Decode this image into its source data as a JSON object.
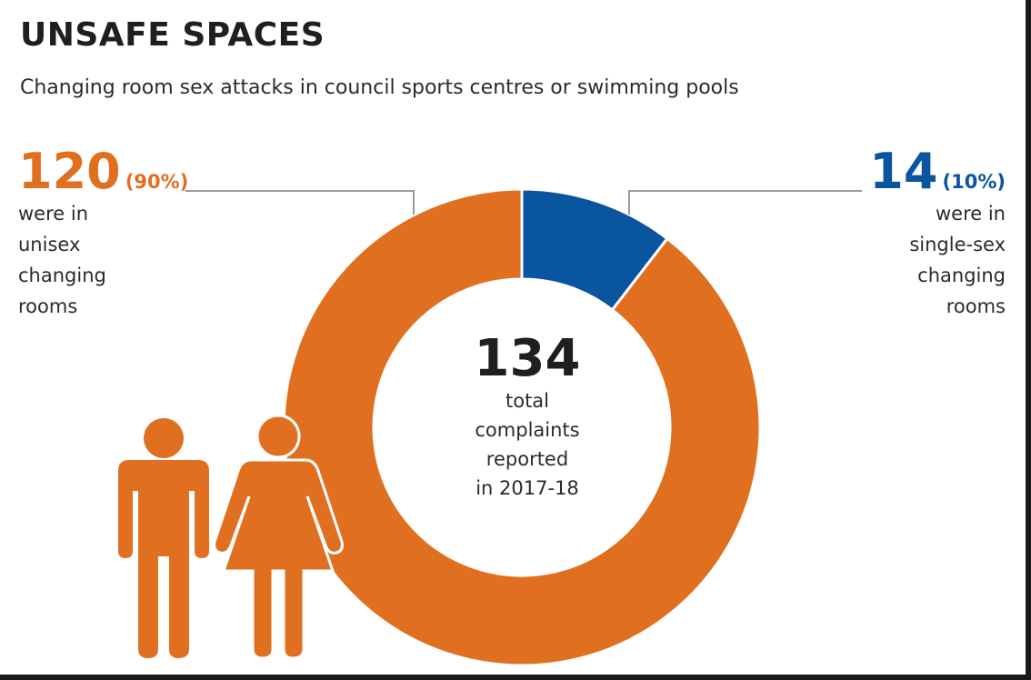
{
  "title": "UNSAFE SPACES",
  "subtitle": "Changing room sex attacks in council sports centres or swimming pools",
  "center": {
    "total": "134",
    "desc_lines": [
      "total",
      "complaints",
      "reported",
      "in 2017-18"
    ]
  },
  "left_label": {
    "value": "120",
    "pct": "(90%)",
    "desc_lines": [
      "were in",
      "unisex",
      "changing",
      "rooms"
    ]
  },
  "right_label": {
    "value": "14",
    "pct": "(10%)",
    "desc_lines": [
      "were in",
      "single-sex",
      "changing",
      "rooms"
    ]
  },
  "chart_data": {
    "type": "pie",
    "style": "donut",
    "title": "UNSAFE SPACES",
    "subtitle": "Changing room sex attacks in council sports centres or swimming pools",
    "total": 134,
    "slices": [
      {
        "label": "unisex changing rooms",
        "value": 120,
        "percent": 90,
        "color": "#e07020"
      },
      {
        "label": "single-sex changing rooms",
        "value": 14,
        "percent": 10,
        "color": "#0a55a0"
      }
    ],
    "start": "top",
    "direction": "clockwise",
    "slice_order": [
      "single-sex changing rooms",
      "unisex changing rooms"
    ]
  },
  "colors": {
    "orange": "#e07020",
    "blue": "#0a55a0",
    "leader_line": "#9a9a9a",
    "text": "#1f1f1f"
  },
  "icons": [
    "man-icon",
    "woman-icon"
  ]
}
